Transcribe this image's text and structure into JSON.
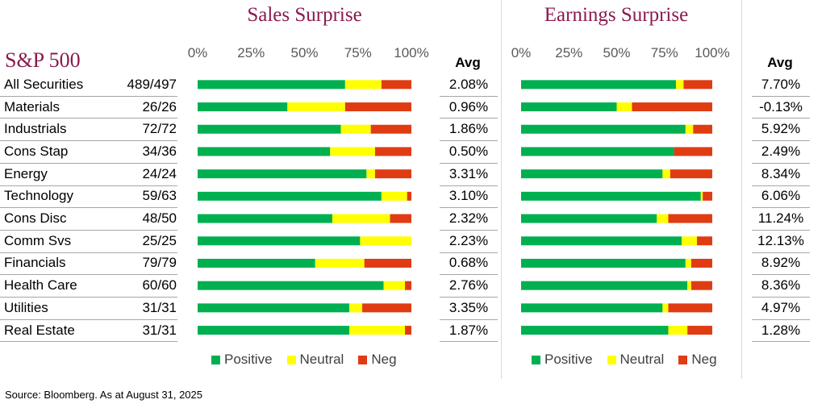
{
  "index_title": "S&P 500",
  "source": "Source: Bloomberg. As at August 31, 2025",
  "avg_header": "Avg",
  "colors": {
    "positive": "#00B050",
    "neutral": "#FFFF00",
    "neg": "#E03C14",
    "title": "#8B1A4E"
  },
  "rows": [
    {
      "label": "All Securities",
      "count": "489/497"
    },
    {
      "label": "Materials",
      "count": "26/26"
    },
    {
      "label": "Industrials",
      "count": "72/72"
    },
    {
      "label": "Cons Stap",
      "count": "34/36"
    },
    {
      "label": "Energy",
      "count": "24/24"
    },
    {
      "label": "Technology",
      "count": "59/63"
    },
    {
      "label": "Cons Disc",
      "count": "48/50"
    },
    {
      "label": "Comm Svs",
      "count": "25/25"
    },
    {
      "label": "Financials",
      "count": "79/79"
    },
    {
      "label": "Health Care",
      "count": "60/60"
    },
    {
      "label": "Utilities",
      "count": "31/31"
    },
    {
      "label": "Real Estate",
      "count": "31/31"
    }
  ],
  "chart_data": [
    {
      "type": "bar",
      "stacked": true,
      "orientation": "horizontal",
      "title": "Sales Surprise",
      "categories": [
        "All Securities",
        "Materials",
        "Industrials",
        "Cons Stap",
        "Energy",
        "Technology",
        "Cons Disc",
        "Comm Svs",
        "Financials",
        "Health Care",
        "Utilities",
        "Real Estate"
      ],
      "x_ticks": [
        "0%",
        "25%",
        "50%",
        "75%",
        "100%"
      ],
      "xlim": [
        0,
        100
      ],
      "series": [
        {
          "name": "Positive",
          "values": [
            69,
            42,
            67,
            62,
            79,
            86,
            63,
            76,
            55,
            87,
            71,
            71
          ]
        },
        {
          "name": "Neutral",
          "values": [
            17,
            27,
            14,
            21,
            4,
            12,
            27,
            24,
            23,
            10,
            6,
            26
          ]
        },
        {
          "name": "Neg",
          "values": [
            14,
            31,
            19,
            17,
            17,
            2,
            10,
            0,
            22,
            3,
            23,
            3
          ]
        }
      ],
      "avg": [
        "2.08%",
        "0.96%",
        "1.86%",
        "0.50%",
        "3.31%",
        "3.10%",
        "2.32%",
        "2.23%",
        "0.68%",
        "2.76%",
        "3.35%",
        "1.87%"
      ],
      "legend": "bottom"
    },
    {
      "type": "bar",
      "stacked": true,
      "orientation": "horizontal",
      "title": "Earnings Surprise",
      "categories": [
        "All Securities",
        "Materials",
        "Industrials",
        "Cons Stap",
        "Energy",
        "Technology",
        "Cons Disc",
        "Comm Svs",
        "Financials",
        "Health Care",
        "Utilities",
        "Real Estate"
      ],
      "x_ticks": [
        "0%",
        "25%",
        "50%",
        "75%",
        "100%"
      ],
      "xlim": [
        0,
        100
      ],
      "series": [
        {
          "name": "Positive",
          "values": [
            81,
            50,
            86,
            80,
            74,
            94,
            71,
            84,
            86,
            87,
            74,
            77
          ]
        },
        {
          "name": "Neutral",
          "values": [
            4,
            8,
            4,
            0,
            4,
            1,
            6,
            8,
            3,
            2,
            3,
            10
          ]
        },
        {
          "name": "Neg",
          "values": [
            15,
            42,
            10,
            20,
            22,
            5,
            23,
            8,
            11,
            11,
            23,
            13
          ]
        }
      ],
      "avg": [
        "7.70%",
        "-0.13%",
        "5.92%",
        "2.49%",
        "8.34%",
        "6.06%",
        "11.24%",
        "12.13%",
        "8.92%",
        "8.36%",
        "4.97%",
        "1.28%"
      ],
      "legend": "bottom"
    }
  ]
}
